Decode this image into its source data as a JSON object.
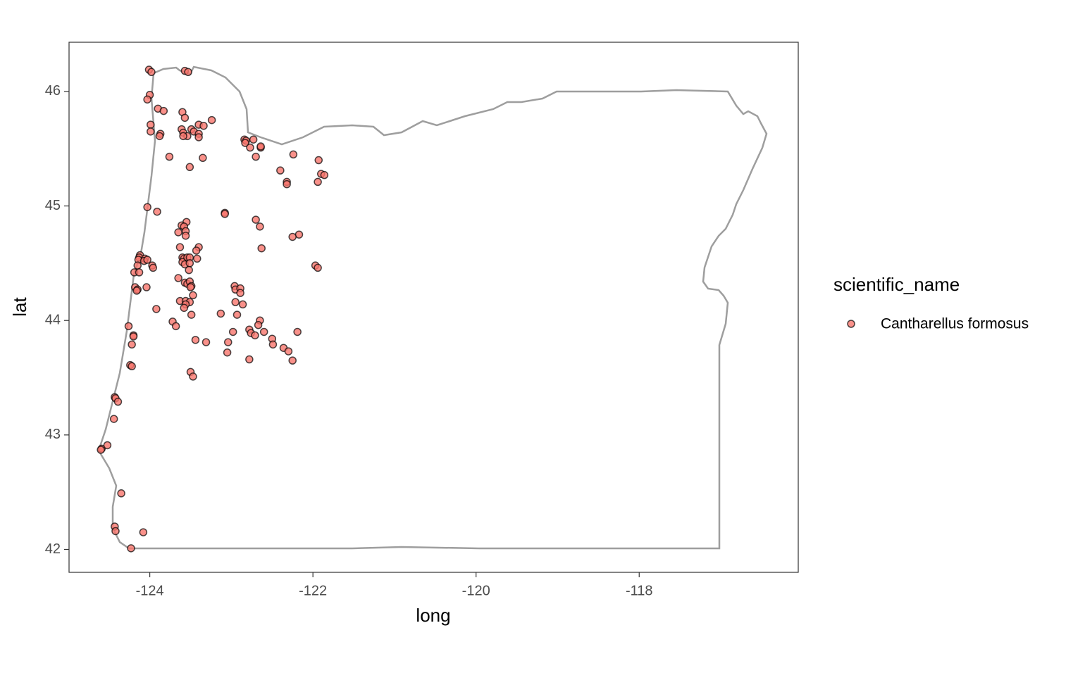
{
  "chart_data": {
    "type": "scatter",
    "xlabel": "long",
    "ylabel": "lat",
    "legend_title": "scientific_name",
    "legend": "right",
    "grid": false,
    "xlim": [
      -124.99,
      -116.05
    ],
    "ylim": [
      41.8,
      46.43
    ],
    "xticks": [
      -124,
      -122,
      -120,
      -118
    ],
    "yticks": [
      42,
      43,
      44,
      45,
      46
    ],
    "series": [
      {
        "name": "Cantharellus formosus",
        "color": "#F8766D",
        "x": [
          -124.01,
          -123.98,
          -123.57,
          -123.53,
          -124.0,
          -124.03,
          -123.9,
          -123.83,
          -123.6,
          -123.57,
          -123.24,
          -123.99,
          -123.61,
          -123.49,
          -123.4,
          -123.34,
          -123.99,
          -123.87,
          -123.88,
          -123.59,
          -123.54,
          -123.46,
          -123.4,
          -123.4,
          -123.59,
          -122.84,
          -122.82,
          -122.83,
          -122.73,
          -122.77,
          -122.64,
          -122.64,
          -123.76,
          -123.35,
          -122.7,
          -123.51,
          -122.24,
          -121.93,
          -122.4,
          -122.32,
          -122.32,
          -121.9,
          -121.86,
          -121.94,
          -124.03,
          -123.91,
          -123.08,
          -123.08,
          -122.7,
          -122.65,
          -123.55,
          -123.61,
          -123.58,
          -123.56,
          -123.65,
          -123.56,
          -122.17,
          -122.25,
          -123.63,
          -123.4,
          -123.43,
          -122.63,
          -124.12,
          -124.13,
          -124.06,
          -124.14,
          -124.07,
          -124.03,
          -123.6,
          -123.58,
          -123.54,
          -123.51,
          -123.6,
          -123.57,
          -123.51,
          -123.42,
          -124.15,
          -123.97,
          -123.96,
          -124.19,
          -124.13,
          -123.52,
          -121.97,
          -121.94,
          -123.65,
          -123.57,
          -123.54,
          -123.51,
          -123.49,
          -123.5,
          -124.18,
          -124.15,
          -124.16,
          -124.04,
          -122.96,
          -122.95,
          -122.89,
          -122.89,
          -123.47,
          -123.63,
          -123.56,
          -123.51,
          -122.95,
          -122.86,
          -123.56,
          -123.58,
          -123.92,
          -123.49,
          -123.13,
          -122.93,
          -123.72,
          -123.68,
          -124.26,
          -122.65,
          -122.67,
          -122.78,
          -122.98,
          -122.76,
          -122.71,
          -122.6,
          -122.19,
          -124.2,
          -124.2,
          -122.5,
          -122.49,
          -124.22,
          -123.44,
          -123.31,
          -123.04,
          -122.36,
          -122.3,
          -123.05,
          -122.78,
          -122.25,
          -123.5,
          -123.47,
          -124.24,
          -124.22,
          -124.43,
          -124.42,
          -124.39,
          -124.44,
          -124.59,
          -124.6,
          -124.52,
          -124.35,
          -124.43,
          -124.42,
          -124.08,
          -124.23
        ],
        "y": [
          46.19,
          46.17,
          46.18,
          46.17,
          45.97,
          45.93,
          45.85,
          45.83,
          45.82,
          45.77,
          45.75,
          45.71,
          45.67,
          45.67,
          45.71,
          45.7,
          45.65,
          45.63,
          45.61,
          45.64,
          45.61,
          45.65,
          45.63,
          45.6,
          45.61,
          45.58,
          45.57,
          45.55,
          45.58,
          45.51,
          45.51,
          45.52,
          45.43,
          45.42,
          45.43,
          45.34,
          45.45,
          45.4,
          45.31,
          45.21,
          45.19,
          45.28,
          45.27,
          45.21,
          44.99,
          44.95,
          44.94,
          44.93,
          44.88,
          44.82,
          44.86,
          44.83,
          44.82,
          44.78,
          44.77,
          44.74,
          44.75,
          44.73,
          44.64,
          44.64,
          44.61,
          44.63,
          44.57,
          44.55,
          44.54,
          44.53,
          44.52,
          44.53,
          44.55,
          44.54,
          44.55,
          44.55,
          44.51,
          44.49,
          44.5,
          44.54,
          44.48,
          44.48,
          44.46,
          44.42,
          44.42,
          44.44,
          44.48,
          44.46,
          44.37,
          44.33,
          44.32,
          44.34,
          44.3,
          44.29,
          44.29,
          44.27,
          44.26,
          44.29,
          44.3,
          44.27,
          44.28,
          44.24,
          44.22,
          44.17,
          44.17,
          44.16,
          44.16,
          44.14,
          44.14,
          44.11,
          44.1,
          44.05,
          44.06,
          44.05,
          43.99,
          43.95,
          43.95,
          44.0,
          43.96,
          43.92,
          43.9,
          43.89,
          43.87,
          43.9,
          43.9,
          43.87,
          43.86,
          43.84,
          43.79,
          43.79,
          43.83,
          43.81,
          43.81,
          43.76,
          43.73,
          43.72,
          43.66,
          43.65,
          43.55,
          43.51,
          43.61,
          43.6,
          43.33,
          43.32,
          43.29,
          43.14,
          42.88,
          42.87,
          42.91,
          42.49,
          42.2,
          42.16,
          42.15,
          42.01
        ]
      }
    ]
  }
}
